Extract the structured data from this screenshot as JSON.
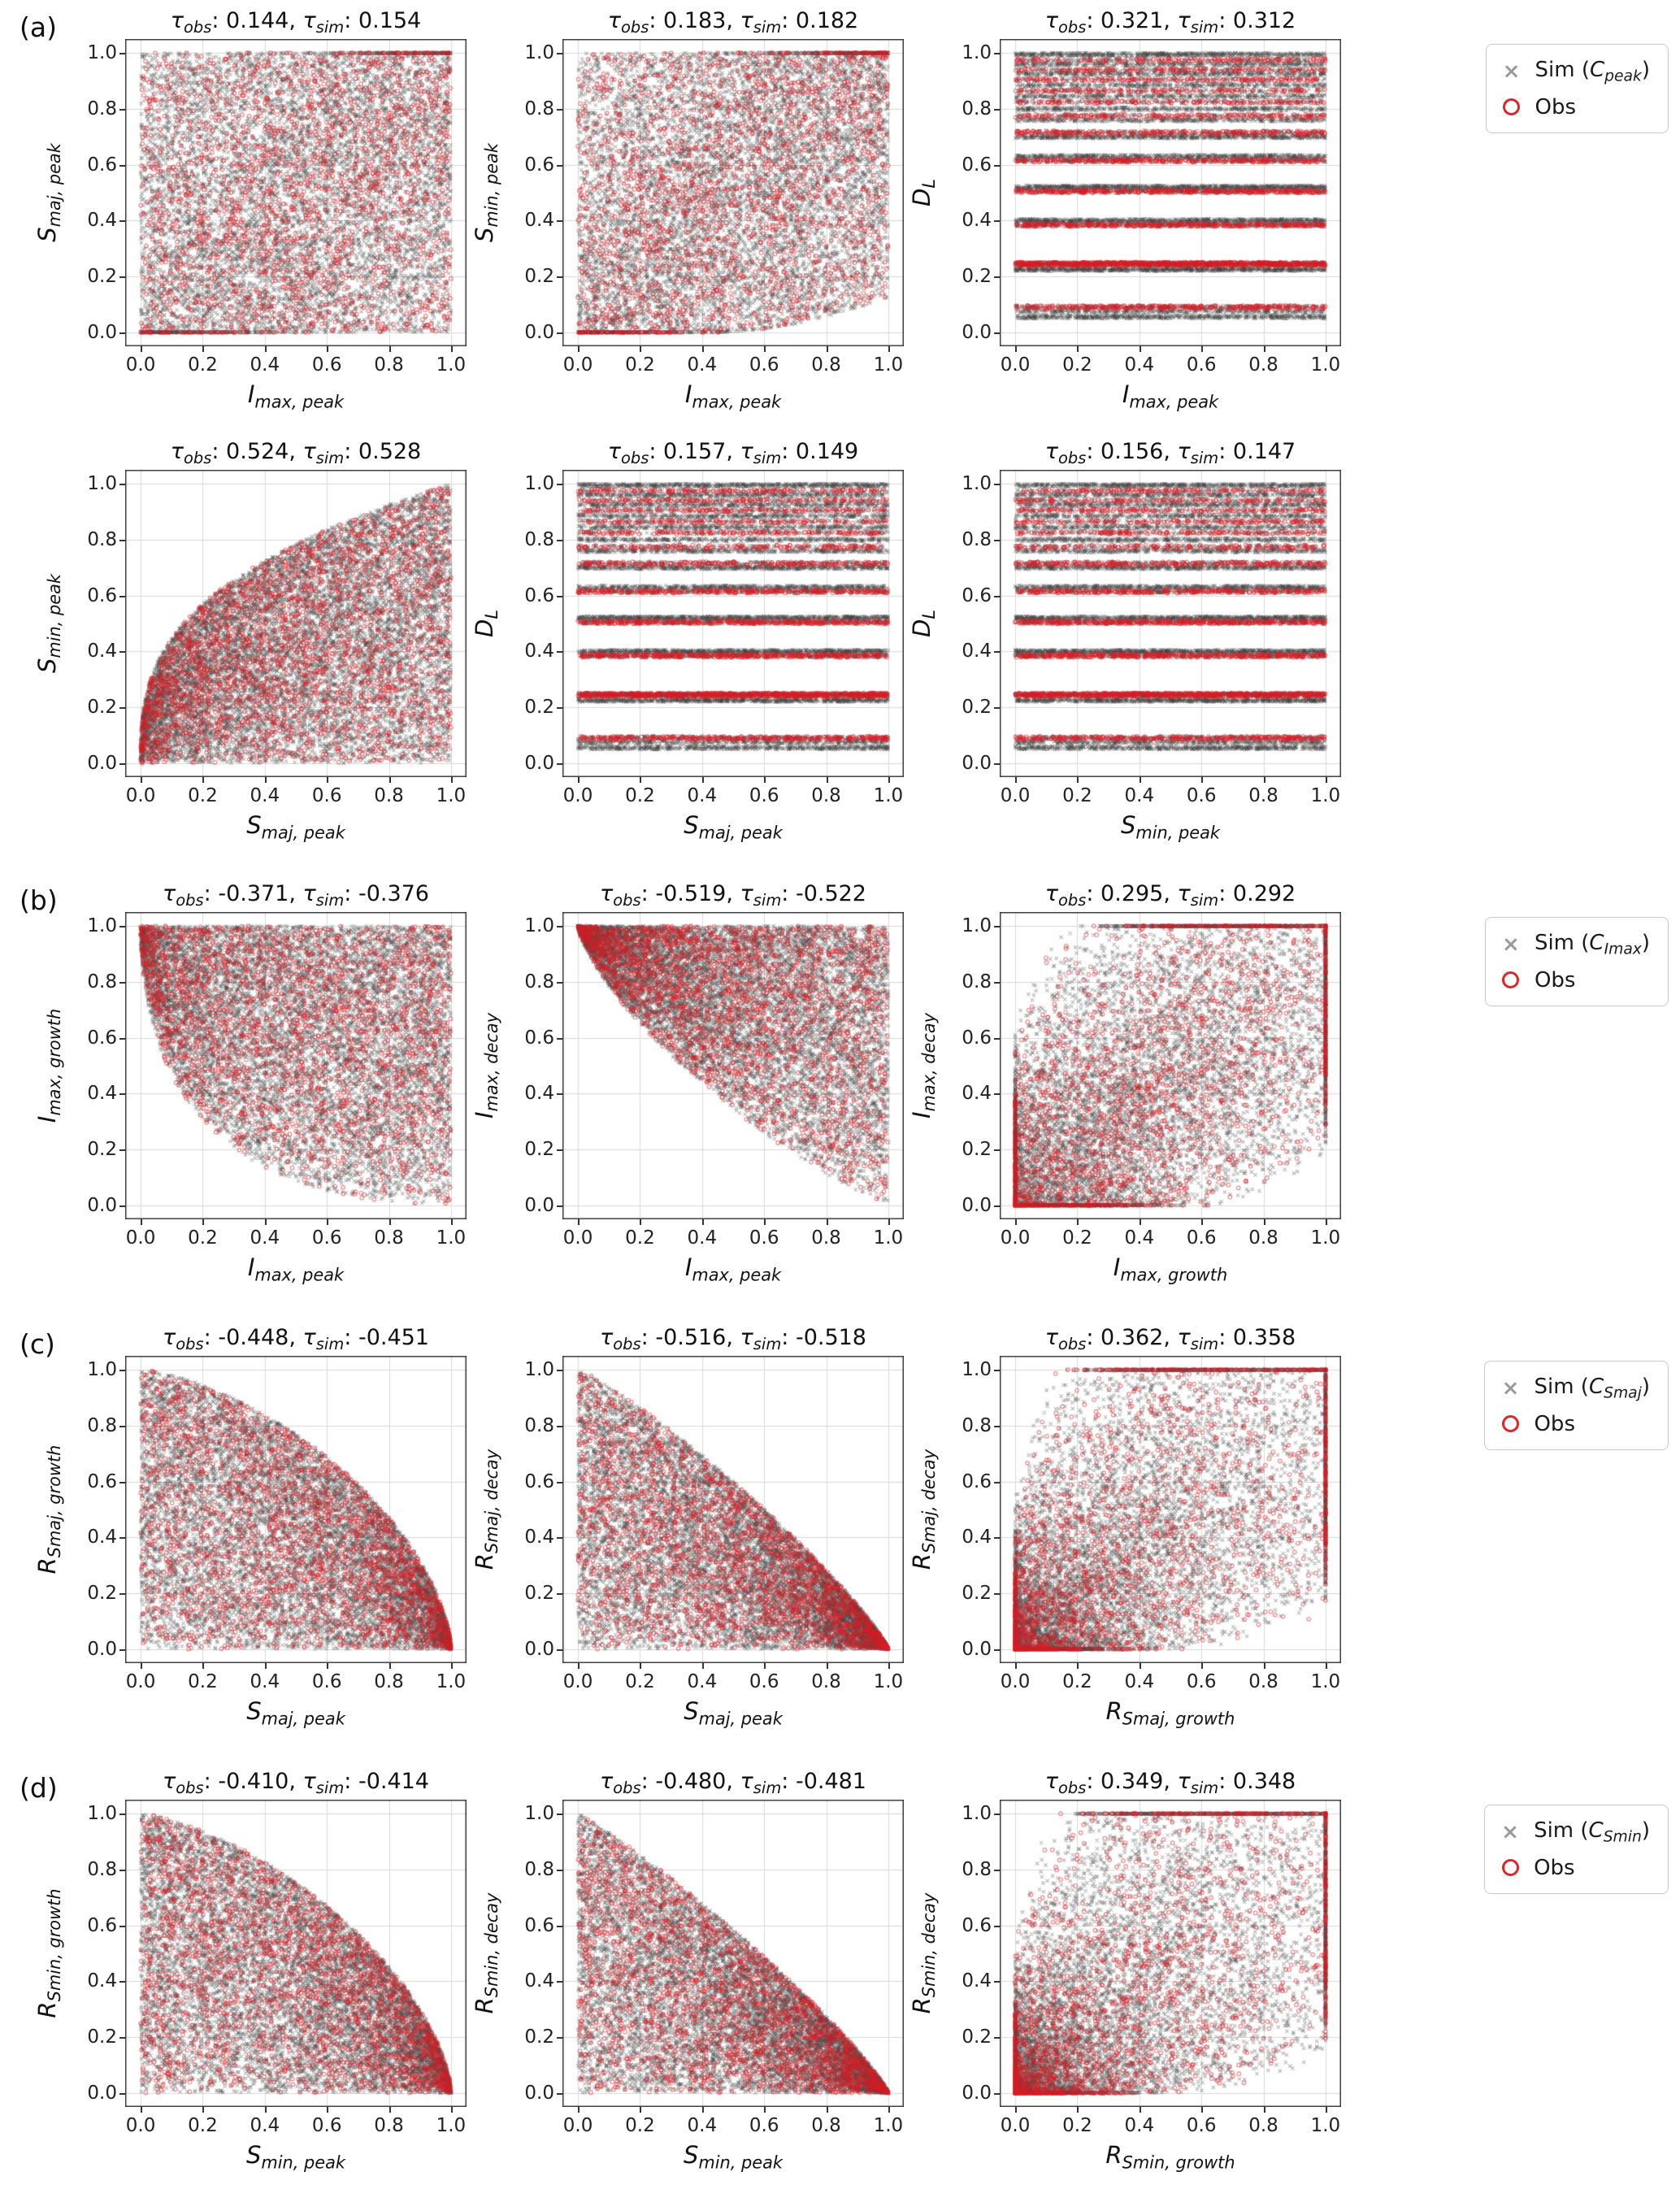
{
  "figure": {
    "background": "#ffffff",
    "sim_color": "#9a9a9a",
    "obs_color": "#e02428",
    "mass_color": "#3f3f3f",
    "grid_color": "#d8d8d8"
  },
  "panels": [
    {
      "label": "(a)"
    },
    {
      "label": "(b)"
    },
    {
      "label": "(c)"
    },
    {
      "label": "(d)"
    }
  ],
  "axis": {
    "ticks": [
      "0.0",
      "0.2",
      "0.4",
      "0.6",
      "0.8",
      "1.0"
    ],
    "tick_values": [
      0,
      0.2,
      0.4,
      0.6,
      0.8,
      1.0
    ],
    "xlim": [
      0.0,
      1.0
    ],
    "ylim": [
      0.0,
      1.0
    ],
    "grid": true
  },
  "legends": [
    {
      "items": [
        {
          "marker": "x",
          "label": "Sim (C_peak)",
          "parts": [
            [
              "t",
              "Sim ("
            ],
            [
              "v",
              "C"
            ],
            [
              "s",
              "peak"
            ],
            [
              "t",
              ")"
            ]
          ]
        },
        {
          "marker": "o",
          "label": "Obs",
          "parts": [
            [
              "t",
              "Obs"
            ]
          ]
        }
      ]
    },
    {
      "items": [
        {
          "marker": "x",
          "label": "Sim (C_Imax)",
          "parts": [
            [
              "t",
              "Sim ("
            ],
            [
              "v",
              "C"
            ],
            [
              "s",
              "Imax"
            ],
            [
              "t",
              ")"
            ]
          ]
        },
        {
          "marker": "o",
          "label": "Obs",
          "parts": [
            [
              "t",
              "Obs"
            ]
          ]
        }
      ]
    },
    {
      "items": [
        {
          "marker": "x",
          "label": "Sim (C_Smaj)",
          "parts": [
            [
              "t",
              "Sim ("
            ],
            [
              "v",
              "C"
            ],
            [
              "s",
              "Smaj"
            ],
            [
              "t",
              ")"
            ]
          ]
        },
        {
          "marker": "o",
          "label": "Obs",
          "parts": [
            [
              "t",
              "Obs"
            ]
          ]
        }
      ]
    },
    {
      "items": [
        {
          "marker": "x",
          "label": "Sim (C_Smin)",
          "parts": [
            [
              "t",
              "Sim ("
            ],
            [
              "v",
              "C"
            ],
            [
              "s",
              "Smin"
            ],
            [
              "t",
              ")"
            ]
          ]
        },
        {
          "marker": "o",
          "label": "Obs",
          "parts": [
            [
              "t",
              "Obs"
            ]
          ]
        }
      ]
    }
  ],
  "dl_levels": [
    {
      "y": 0.055,
      "c": "g",
      "w": 1.5
    },
    {
      "y": 0.075,
      "c": "g",
      "w": 1
    },
    {
      "y": 0.09,
      "c": "r",
      "w": 2
    },
    {
      "y": 0.225,
      "c": "g",
      "w": 2
    },
    {
      "y": 0.245,
      "c": "r",
      "w": 5
    },
    {
      "y": 0.385,
      "c": "r",
      "w": 2.5
    },
    {
      "y": 0.4,
      "c": "g",
      "w": 2
    },
    {
      "y": 0.505,
      "c": "r",
      "w": 2.5
    },
    {
      "y": 0.52,
      "c": "g",
      "w": 2
    },
    {
      "y": 0.615,
      "c": "r",
      "w": 2
    },
    {
      "y": 0.63,
      "c": "g",
      "w": 1.5
    },
    {
      "y": 0.7,
      "c": "g",
      "w": 1.5
    },
    {
      "y": 0.715,
      "c": "r",
      "w": 1.5
    },
    {
      "y": 0.76,
      "c": "g",
      "w": 1
    },
    {
      "y": 0.775,
      "c": "r",
      "w": 1
    },
    {
      "y": 0.8,
      "c": "g",
      "w": 1
    },
    {
      "y": 0.825,
      "c": "r",
      "w": 1
    },
    {
      "y": 0.845,
      "c": "g",
      "w": 1
    },
    {
      "y": 0.865,
      "c": "r",
      "w": 1
    },
    {
      "y": 0.885,
      "c": "g",
      "w": 1
    },
    {
      "y": 0.905,
      "c": "r",
      "w": 1
    },
    {
      "y": 0.925,
      "c": "g",
      "w": 1
    },
    {
      "y": 0.94,
      "c": "r",
      "w": 1
    },
    {
      "y": 0.96,
      "c": "g",
      "w": 1
    },
    {
      "y": 0.975,
      "c": "r",
      "w": 1
    },
    {
      "y": 0.995,
      "c": "g",
      "w": 1.5
    }
  ],
  "chart_data": [
    {
      "id": "a1",
      "row": "r1",
      "panel": "a",
      "type": "scatter",
      "title": "τ_obs: 0.144, τ_sim: 0.154",
      "tau_obs": "0.144",
      "tau_sim": "0.154",
      "xlabel": "I_max,peak",
      "ylabel": "S_maj,peak",
      "xlabel_parts": [
        [
          "v",
          "I"
        ],
        [
          "s",
          "max, peak"
        ]
      ],
      "ylabel_parts": [
        [
          "v",
          "S"
        ],
        [
          "s",
          "maj, peak"
        ]
      ],
      "series": [
        "Sim",
        "Obs"
      ],
      "shape": "uniform_pos",
      "mix": 0.22,
      "n_sim": 9000,
      "n_obs": 2200
    },
    {
      "id": "a2",
      "row": "r1",
      "panel": "a",
      "type": "scatter",
      "title": "τ_obs: 0.183, τ_sim: 0.182",
      "tau_obs": "0.183",
      "tau_sim": "0.182",
      "xlabel": "I_max,peak",
      "ylabel": "S_min,peak",
      "xlabel_parts": [
        [
          "v",
          "I"
        ],
        [
          "s",
          "max, peak"
        ]
      ],
      "ylabel_parts": [
        [
          "v",
          "S"
        ],
        [
          "s",
          "min, peak"
        ]
      ],
      "series": [
        "Sim",
        "Obs"
      ],
      "shape": "uniform_pos",
      "mix": 0.3,
      "void_lr": true,
      "n_sim": 9000,
      "n_obs": 2200
    },
    {
      "id": "a3",
      "row": "r1",
      "panel": "a",
      "type": "scatter",
      "title": "τ_obs: 0.321, τ_sim: 0.312",
      "tau_obs": "0.321",
      "tau_sim": "0.312",
      "xlabel": "I_max,peak",
      "ylabel": "D_L",
      "xlabel_parts": [
        [
          "v",
          "I"
        ],
        [
          "s",
          "max, peak"
        ]
      ],
      "ylabel_parts": [
        [
          "v",
          "D"
        ],
        [
          "s",
          "L"
        ]
      ],
      "series": [
        "Sim",
        "Obs"
      ],
      "shape": "bands",
      "y_levels_key": "dl_levels",
      "n_sim": 12000,
      "n_obs": 3400
    },
    {
      "id": "a4",
      "row": "r2",
      "panel": "a",
      "type": "scatter",
      "title": "τ_obs: 0.524, τ_sim: 0.528",
      "tau_obs": "0.524",
      "tau_sim": "0.528",
      "xlabel": "S_maj,peak",
      "ylabel": "S_min,peak",
      "xlabel_parts": [
        [
          "v",
          "S"
        ],
        [
          "s",
          "maj, peak"
        ]
      ],
      "ylabel_parts": [
        [
          "v",
          "S"
        ],
        [
          "s",
          "min, peak"
        ]
      ],
      "series": [
        "Sim",
        "Obs"
      ],
      "shape": "below_concave",
      "p": 0.35,
      "vpow": 0.85,
      "n_sim": 11000,
      "n_obs": 2600
    },
    {
      "id": "a5",
      "row": "r2",
      "panel": "a",
      "type": "scatter",
      "title": "τ_obs: 0.157, τ_sim: 0.149",
      "tau_obs": "0.157",
      "tau_sim": "0.149",
      "xlabel": "S_maj,peak",
      "ylabel": "D_L",
      "xlabel_parts": [
        [
          "v",
          "S"
        ],
        [
          "s",
          "maj, peak"
        ]
      ],
      "ylabel_parts": [
        [
          "v",
          "D"
        ],
        [
          "s",
          "L"
        ]
      ],
      "series": [
        "Sim",
        "Obs"
      ],
      "shape": "bands",
      "y_levels_key": "dl_levels",
      "n_sim": 12000,
      "n_obs": 3400
    },
    {
      "id": "a6",
      "row": "r2",
      "panel": "a",
      "type": "scatter",
      "title": "τ_obs: 0.156, τ_sim: 0.147",
      "tau_obs": "0.156",
      "tau_sim": "0.147",
      "xlabel": "S_min,peak",
      "ylabel": "D_L",
      "xlabel_parts": [
        [
          "v",
          "S"
        ],
        [
          "s",
          "min, peak"
        ]
      ],
      "ylabel_parts": [
        [
          "v",
          "D"
        ],
        [
          "s",
          "L"
        ]
      ],
      "series": [
        "Sim",
        "Obs"
      ],
      "shape": "bands",
      "y_levels_key": "dl_levels",
      "n_sim": 12000,
      "n_obs": 3400
    },
    {
      "id": "b1",
      "row": "r3",
      "panel": "b",
      "type": "scatter",
      "title": "τ_obs: -0.371, τ_sim: -0.376",
      "tau_obs": "-0.371",
      "tau_sim": "-0.376",
      "xlabel": "I_max,peak",
      "ylabel": "I_max,growth",
      "xlabel_parts": [
        [
          "v",
          "I"
        ],
        [
          "s",
          "max, peak"
        ]
      ],
      "ylabel_parts": [
        [
          "v",
          "I"
        ],
        [
          "s",
          "max, growth"
        ]
      ],
      "series": [
        "Sim",
        "Obs"
      ],
      "shape": "above_dec",
      "a": 0.5,
      "b": 2.0,
      "vpow": 0.8,
      "n_sim": 10000,
      "n_obs": 2400
    },
    {
      "id": "b2",
      "row": "r3",
      "panel": "b",
      "type": "scatter",
      "title": "τ_obs: -0.519, τ_sim: -0.522",
      "tau_obs": "-0.519",
      "tau_sim": "-0.522",
      "xlabel": "I_max,peak",
      "ylabel": "I_max,decay",
      "xlabel_parts": [
        [
          "v",
          "I"
        ],
        [
          "s",
          "max, peak"
        ]
      ],
      "ylabel_parts": [
        [
          "v",
          "I"
        ],
        [
          "s",
          "max, decay"
        ]
      ],
      "series": [
        "Sim",
        "Obs"
      ],
      "shape": "above_dec",
      "a": 0.72,
      "b": 1.15,
      "vpow": 0.8,
      "n_sim": 10000,
      "n_obs": 2400
    },
    {
      "id": "b3",
      "row": "r3",
      "panel": "b",
      "type": "scatter",
      "title": "τ_obs: 0.295, τ_sim: 0.292",
      "tau_obs": "0.295",
      "tau_sim": "0.292",
      "xlabel": "I_max,growth",
      "ylabel": "I_max,decay",
      "xlabel_parts": [
        [
          "v",
          "I"
        ],
        [
          "s",
          "max, growth"
        ]
      ],
      "ylabel_parts": [
        [
          "v",
          "I"
        ],
        [
          "s",
          "max, decay"
        ]
      ],
      "series": [
        "Sim",
        "Obs"
      ],
      "shape": "corr_skew",
      "k": 1.35,
      "spread": 0.75,
      "n_sim": 9500,
      "n_obs": 2300
    },
    {
      "id": "c1",
      "row": "r4",
      "panel": "c",
      "type": "scatter",
      "title": "τ_obs: -0.448, τ_sim: -0.451",
      "tau_obs": "-0.448",
      "tau_sim": "-0.451",
      "xlabel": "S_maj,peak",
      "ylabel": "R_Smaj,growth",
      "xlabel_parts": [
        [
          "v",
          "S"
        ],
        [
          "s",
          "maj, peak"
        ]
      ],
      "ylabel_parts": [
        [
          "v",
          "R"
        ],
        [
          "s",
          "Smaj, growth"
        ]
      ],
      "series": [
        "Sim",
        "Obs"
      ],
      "shape": "below_dec",
      "a": 1.5,
      "b": 0.6,
      "vpow": 0.85,
      "n_sim": 10000,
      "n_obs": 2400
    },
    {
      "id": "c2",
      "row": "r4",
      "panel": "c",
      "type": "scatter",
      "title": "τ_obs: -0.516, τ_sim: -0.518",
      "tau_obs": "-0.516",
      "tau_sim": "-0.518",
      "xlabel": "S_maj,peak",
      "ylabel": "R_Smaj,decay",
      "xlabel_parts": [
        [
          "v",
          "S"
        ],
        [
          "s",
          "maj, peak"
        ]
      ],
      "ylabel_parts": [
        [
          "v",
          "R"
        ],
        [
          "s",
          "Smaj, decay"
        ]
      ],
      "series": [
        "Sim",
        "Obs"
      ],
      "shape": "below_dec",
      "a": 1.15,
      "b": 0.85,
      "vpow": 0.85,
      "n_sim": 10000,
      "n_obs": 2400
    },
    {
      "id": "c3",
      "row": "r4",
      "panel": "c",
      "type": "scatter",
      "title": "τ_obs: 0.362, τ_sim: 0.358",
      "tau_obs": "0.362",
      "tau_sim": "0.358",
      "xlabel": "R_Smaj,growth",
      "ylabel": "R_Smaj,decay",
      "xlabel_parts": [
        [
          "v",
          "R"
        ],
        [
          "s",
          "Smaj, growth"
        ]
      ],
      "ylabel_parts": [
        [
          "v",
          "R"
        ],
        [
          "s",
          "Smaj, decay"
        ]
      ],
      "series": [
        "Sim",
        "Obs"
      ],
      "shape": "corr_skew",
      "k": 1.75,
      "spread": 0.7,
      "n_sim": 9500,
      "n_obs": 2300
    },
    {
      "id": "d1",
      "row": "r5",
      "panel": "d",
      "type": "scatter",
      "title": "τ_obs: -0.410, τ_sim: -0.414",
      "tau_obs": "-0.410",
      "tau_sim": "-0.414",
      "xlabel": "S_min,peak",
      "ylabel": "R_Smin,growth",
      "xlabel_parts": [
        [
          "v",
          "S"
        ],
        [
          "s",
          "min, peak"
        ]
      ],
      "ylabel_parts": [
        [
          "v",
          "R"
        ],
        [
          "s",
          "Smin, growth"
        ]
      ],
      "series": [
        "Sim",
        "Obs"
      ],
      "shape": "below_dec",
      "a": 1.45,
      "b": 0.62,
      "vpow": 0.85,
      "n_sim": 10000,
      "n_obs": 2400
    },
    {
      "id": "d2",
      "row": "r5",
      "panel": "d",
      "type": "scatter",
      "title": "τ_obs: -0.480, τ_sim: -0.481",
      "tau_obs": "-0.480",
      "tau_sim": "-0.481",
      "xlabel": "S_min,peak",
      "ylabel": "R_Smin,decay",
      "xlabel_parts": [
        [
          "v",
          "S"
        ],
        [
          "s",
          "min, peak"
        ]
      ],
      "ylabel_parts": [
        [
          "v",
          "R"
        ],
        [
          "s",
          "Smin, decay"
        ]
      ],
      "series": [
        "Sim",
        "Obs"
      ],
      "shape": "below_dec",
      "a": 1.1,
      "b": 0.85,
      "vpow": 0.85,
      "n_sim": 10000,
      "n_obs": 2400
    },
    {
      "id": "d3",
      "row": "r5",
      "panel": "d",
      "type": "scatter",
      "title": "τ_obs: 0.349, τ_sim: 0.348",
      "tau_obs": "0.349",
      "tau_sim": "0.348",
      "xlabel": "R_Smin,growth",
      "ylabel": "R_Smin,decay",
      "xlabel_parts": [
        [
          "v",
          "R"
        ],
        [
          "s",
          "Smin, growth"
        ]
      ],
      "ylabel_parts": [
        [
          "v",
          "R"
        ],
        [
          "s",
          "Smin, decay"
        ]
      ],
      "series": [
        "Sim",
        "Obs"
      ],
      "shape": "corr_skew",
      "k": 1.85,
      "spread": 0.7,
      "n_sim": 9500,
      "n_obs": 2300
    }
  ]
}
